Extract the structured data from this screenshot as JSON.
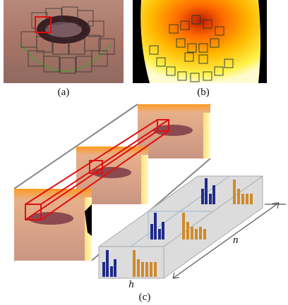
{
  "panels": [
    {
      "label": "(a)"
    },
    {
      "label": "(b)"
    },
    {
      "label": "(c)"
    }
  ],
  "axis_labels": {
    "depth": "n",
    "width": "h"
  }
}
